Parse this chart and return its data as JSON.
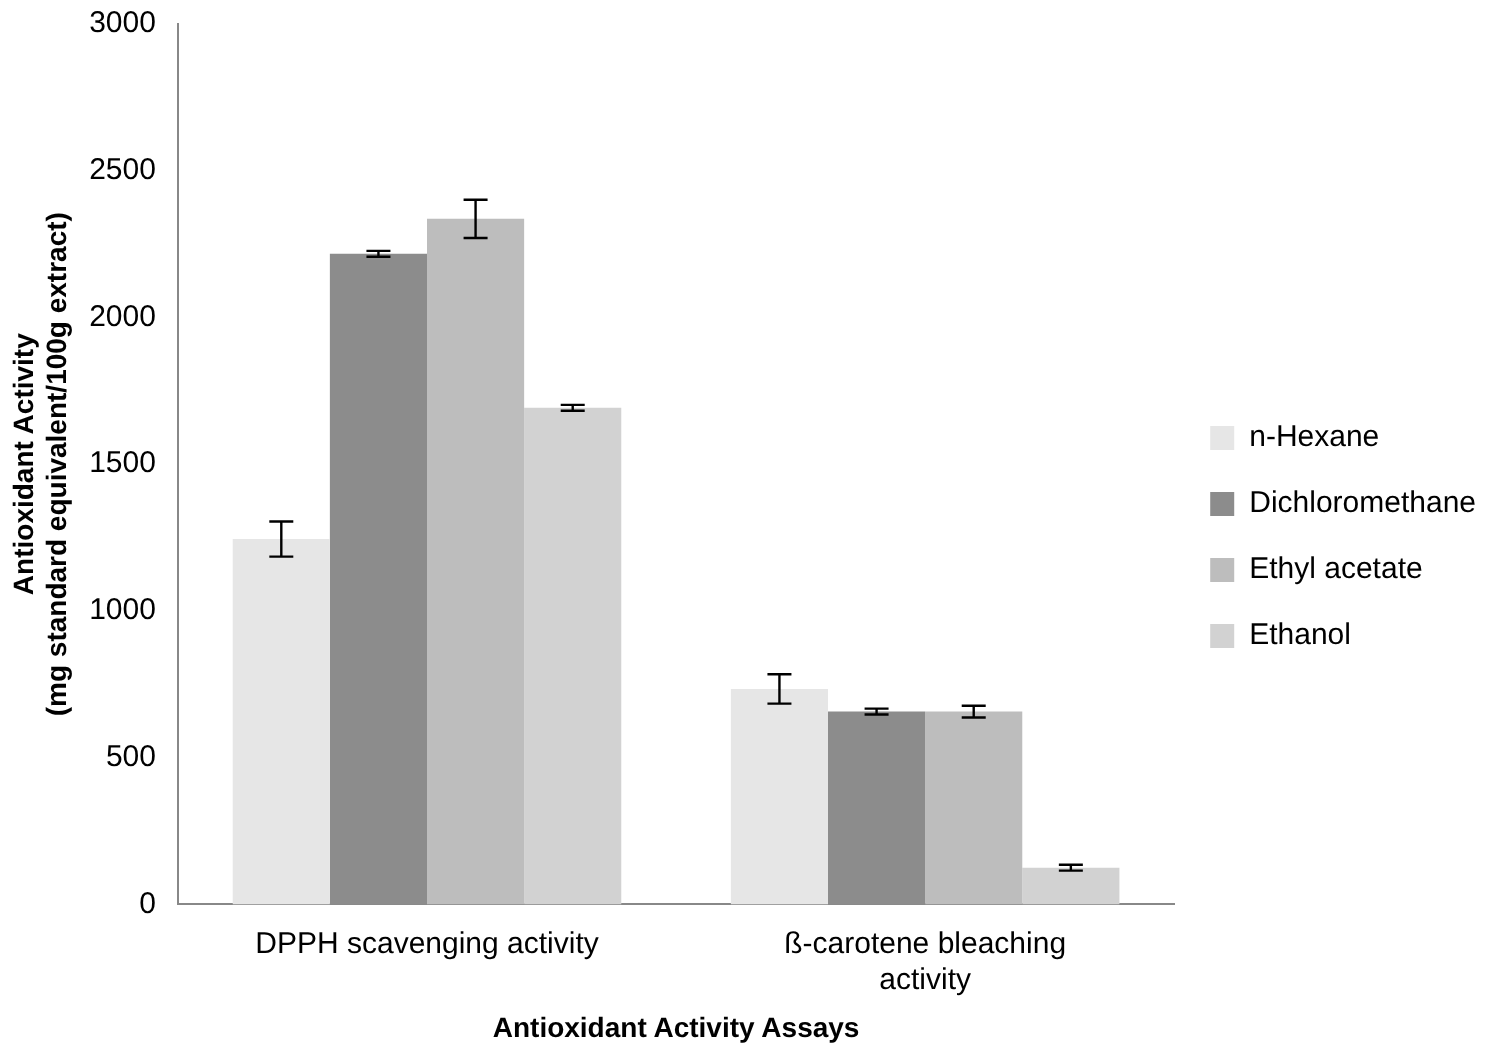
{
  "chart_data": {
    "type": "bar",
    "xlabel": "Antioxidant Activity Assays",
    "ylabel": "Antioxidant Activity\n(mg standard equivalent/100g extract)",
    "categories": [
      "DPPH scavenging activity",
      "ß-carotene bleaching activity"
    ],
    "series": [
      {
        "name": "n-Hexane",
        "color": "#e6e6e6",
        "values": [
          1245,
          734
        ],
        "errors": [
          60,
          50
        ]
      },
      {
        "name": "Dichloromethane",
        "color": "#8c8c8c",
        "values": [
          2217,
          657
        ],
        "errors": [
          10,
          10
        ]
      },
      {
        "name": "Ethyl acetate",
        "color": "#bdbdbd",
        "values": [
          2336,
          657
        ],
        "errors": [
          65,
          20
        ]
      },
      {
        "name": "Ethanol",
        "color": "#d2d2d2",
        "values": [
          1692,
          125
        ],
        "errors": [
          10,
          10
        ]
      }
    ],
    "ylim": [
      0,
      3000
    ],
    "yticks": [
      0,
      500,
      1000,
      1500,
      2000,
      2500,
      3000
    ],
    "grid": false,
    "legend": "right"
  }
}
